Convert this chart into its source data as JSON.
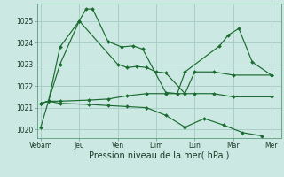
{
  "xlabel": "Pression niveau de la mer( hPa )",
  "background_color": "#cce8e2",
  "grid_color": "#aacfc8",
  "line_color": "#1a6b30",
  "ylim": [
    1019.6,
    1025.8
  ],
  "xlim": [
    -0.2,
    12.5
  ],
  "xtick_labels": [
    "Ve6am",
    "Jeu",
    "Ven",
    "Dim",
    "Lun",
    "Mar",
    "Mer"
  ],
  "xtick_positions": [
    0,
    2,
    4,
    6,
    8,
    10,
    12
  ],
  "ytick_vals": [
    1020,
    1021,
    1022,
    1023,
    1024,
    1025
  ],
  "series": [
    {
      "x": [
        0.0,
        0.4,
        1.0,
        2.0,
        2.35,
        2.7,
        3.5,
        4.2,
        4.8,
        5.3,
        6.5,
        7.1,
        7.5,
        9.3,
        9.75,
        10.3,
        11.0,
        12.0
      ],
      "y": [
        1020.1,
        1021.3,
        1023.8,
        1025.0,
        1025.55,
        1025.55,
        1024.05,
        1023.8,
        1023.85,
        1023.7,
        1021.7,
        1021.65,
        1022.65,
        1023.85,
        1024.35,
        1024.65,
        1023.1,
        1022.5
      ]
    },
    {
      "x": [
        0.0,
        0.4,
        1.0,
        2.0,
        4.0,
        4.5,
        5.0,
        5.5,
        6.0,
        6.5,
        7.5,
        8.0,
        9.0,
        10.0,
        12.0
      ],
      "y": [
        1021.2,
        1021.3,
        1023.0,
        1025.0,
        1023.0,
        1022.85,
        1022.9,
        1022.85,
        1022.65,
        1022.6,
        1021.65,
        1022.65,
        1022.65,
        1022.5,
        1022.5
      ]
    },
    {
      "x": [
        0.0,
        0.4,
        1.0,
        2.5,
        3.5,
        4.5,
        5.5,
        6.5,
        8.0,
        9.0,
        10.0,
        12.0
      ],
      "y": [
        1021.2,
        1021.3,
        1021.3,
        1021.35,
        1021.4,
        1021.55,
        1021.65,
        1021.65,
        1021.65,
        1021.65,
        1021.5,
        1021.5
      ]
    },
    {
      "x": [
        0.0,
        0.4,
        1.0,
        2.5,
        3.5,
        4.5,
        5.5,
        6.5,
        7.5,
        8.5,
        9.5,
        10.5,
        11.5
      ],
      "y": [
        1021.2,
        1021.3,
        1021.2,
        1021.15,
        1021.1,
        1021.05,
        1021.0,
        1020.65,
        1020.1,
        1020.5,
        1020.2,
        1019.85,
        1019.7
      ]
    }
  ]
}
